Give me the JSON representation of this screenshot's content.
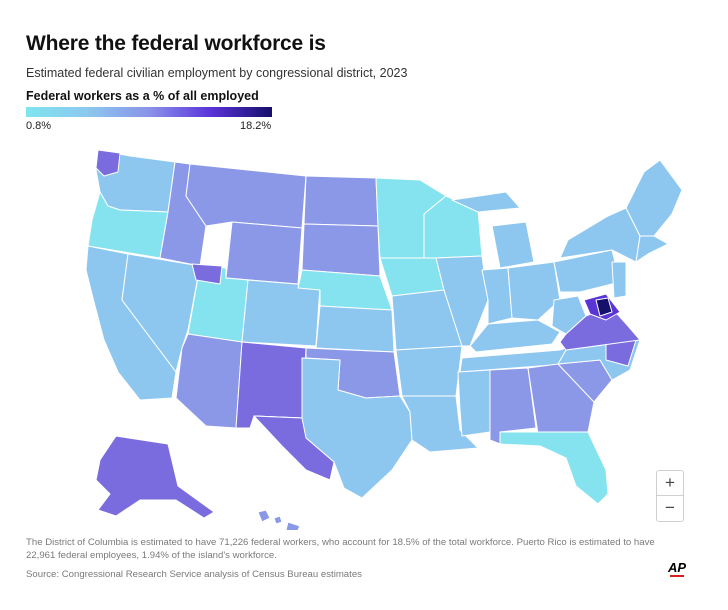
{
  "header": {
    "title": "Where the federal workforce is",
    "subtitle": "Estimated federal civilian employment by congressional district, 2023"
  },
  "legend": {
    "title": "Federal workers as a % of all employed",
    "min_label": "0.8%",
    "max_label": "18.2%",
    "colors": [
      "#7fe4ee",
      "#8cc8ef",
      "#8a93e9",
      "#5b33d9",
      "#15106a"
    ]
  },
  "map": {
    "colors": {
      "low": "#84e3ee",
      "low_mid": "#8dc7f0",
      "mid": "#8b98e8",
      "mid_high": "#7a6cdf",
      "high": "#5a35d5",
      "highest": "#15106a",
      "border": "#ffffff"
    }
  },
  "zoom": {
    "plus": "+",
    "minus": "−"
  },
  "footer": {
    "note": "The District of Columbia is estimated to have 71,226 federal workers, who account for 18.5% of the total workforce. Puerto Rico is estimated to have 22,961 federal employees, 1.94% of the island's workforce.",
    "source": "Source: Congressional Research Service analysis of Census Bureau estimates",
    "logo": "AP"
  }
}
